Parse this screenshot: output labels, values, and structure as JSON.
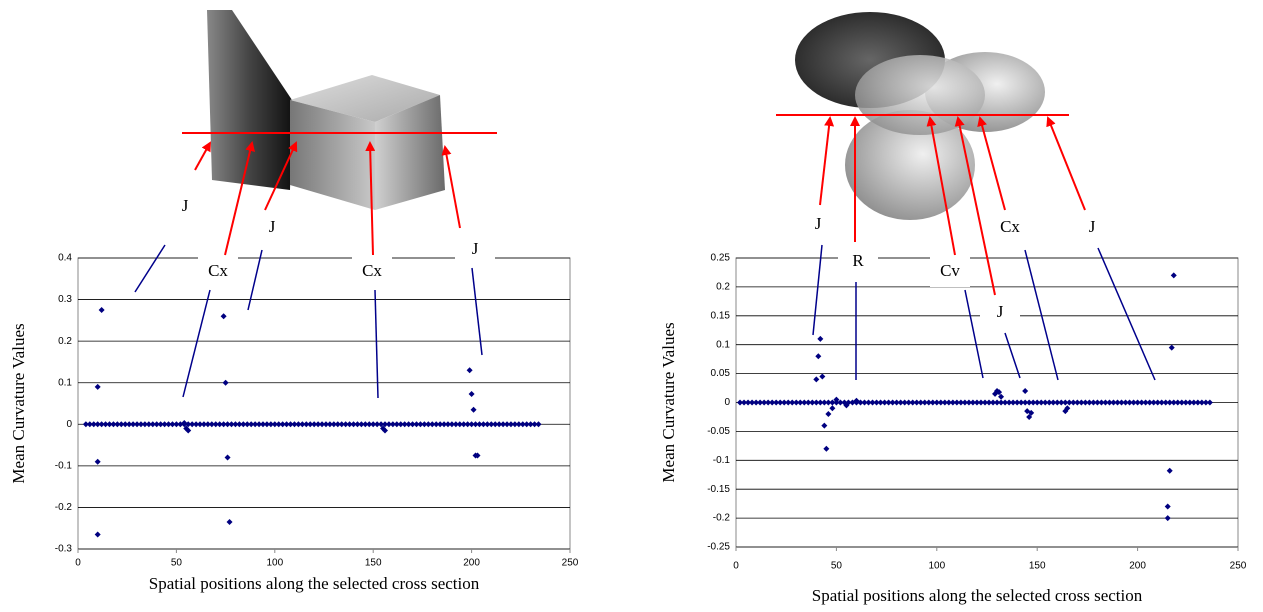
{
  "chart_data": [
    {
      "type": "scatter",
      "xlabel": "Spatial positions along the selected cross section",
      "ylabel": "Mean Curvature Values",
      "xlim": [
        0,
        250
      ],
      "xticks": [
        0,
        50,
        100,
        150,
        200,
        250
      ],
      "ylim": [
        -0.3,
        0.4
      ],
      "yticks": [
        -0.3,
        -0.2,
        -0.1,
        0,
        0.1,
        0.2,
        0.3,
        0.4
      ],
      "grid": true,
      "annotations": [
        "J",
        "Cx",
        "J",
        "Cx",
        "J"
      ],
      "series": [
        {
          "color": "#000080",
          "x": [
            4,
            6,
            8,
            10,
            12,
            14,
            16,
            18,
            20,
            22,
            24,
            26,
            28,
            30,
            32,
            34,
            36,
            38,
            40,
            42,
            44,
            46,
            48,
            50,
            52,
            54,
            56,
            58,
            60,
            62,
            64,
            66,
            68,
            70,
            72,
            74,
            76,
            78,
            80,
            82,
            84,
            86,
            88,
            90,
            92,
            94,
            96,
            98,
            100,
            102,
            104,
            106,
            108,
            110,
            112,
            114,
            116,
            118,
            120,
            122,
            124,
            126,
            128,
            130,
            132,
            134,
            136,
            138,
            140,
            142,
            144,
            146,
            148,
            150,
            152,
            154,
            156,
            158,
            160,
            162,
            164,
            166,
            168,
            170,
            172,
            174,
            176,
            178,
            180,
            182,
            184,
            186,
            188,
            190,
            192,
            194,
            196,
            198,
            200,
            202,
            204,
            206,
            208,
            210,
            212,
            214,
            216,
            218,
            220,
            222,
            224,
            226,
            228,
            230,
            232,
            234,
            10,
            10,
            10,
            12,
            74,
            75,
            76,
            77,
            54,
            55,
            56,
            155,
            156,
            199,
            200,
            201,
            202,
            203
          ],
          "y": [
            0,
            0,
            0,
            0,
            0,
            0,
            0,
            0,
            0,
            0,
            0,
            0,
            0,
            0,
            0,
            0,
            0,
            0,
            0,
            0,
            0,
            0,
            0,
            0,
            0,
            0,
            0,
            0,
            0,
            0,
            0,
            0,
            0,
            0,
            0,
            0,
            0,
            0,
            0,
            0,
            0,
            0,
            0,
            0,
            0,
            0,
            0,
            0,
            0,
            0,
            0,
            0,
            0,
            0,
            0,
            0,
            0,
            0,
            0,
            0,
            0,
            0,
            0,
            0,
            0,
            0,
            0,
            0,
            0,
            0,
            0,
            0,
            0,
            0,
            0,
            0,
            0,
            0,
            0,
            0,
            0,
            0,
            0,
            0,
            0,
            0,
            0,
            0,
            0,
            0,
            0,
            0,
            0,
            0,
            0,
            0,
            0,
            0,
            0,
            0,
            0,
            0,
            0,
            0,
            0,
            0,
            0,
            0,
            0,
            0,
            0,
            0,
            0,
            0,
            0,
            0,
            0.09,
            -0.09,
            -0.265,
            0.275,
            0.26,
            0.1,
            -0.08,
            -0.235,
            0.003,
            -0.01,
            -0.015,
            -0.01,
            -0.015,
            0.13,
            0.073,
            0.035,
            -0.075,
            -0.075
          ]
        }
      ]
    },
    {
      "type": "scatter",
      "xlabel": "Spatial positions along the selected cross section",
      "ylabel": "Mean Curvature Values",
      "xlim": [
        0,
        250
      ],
      "xticks": [
        0,
        50,
        100,
        150,
        200,
        250
      ],
      "ylim": [
        -0.25,
        0.25
      ],
      "yticks": [
        -0.25,
        -0.2,
        -0.15,
        -0.1,
        -0.05,
        0,
        0.05,
        0.1,
        0.15,
        0.2,
        0.25
      ],
      "grid": true,
      "annotations": [
        "J",
        "R",
        "Cv",
        "J",
        "Cx",
        "J"
      ],
      "series": [
        {
          "color": "#000080",
          "x": [
            2,
            4,
            6,
            8,
            10,
            12,
            14,
            16,
            18,
            20,
            22,
            24,
            26,
            28,
            30,
            32,
            34,
            36,
            38,
            40,
            42,
            44,
            46,
            48,
            50,
            52,
            54,
            56,
            58,
            60,
            62,
            64,
            66,
            68,
            70,
            72,
            74,
            76,
            78,
            80,
            82,
            84,
            86,
            88,
            90,
            92,
            94,
            96,
            98,
            100,
            102,
            104,
            106,
            108,
            110,
            112,
            114,
            116,
            118,
            120,
            122,
            124,
            126,
            128,
            130,
            132,
            134,
            136,
            138,
            140,
            142,
            144,
            146,
            148,
            150,
            152,
            154,
            156,
            158,
            160,
            162,
            164,
            166,
            168,
            170,
            172,
            174,
            176,
            178,
            180,
            182,
            184,
            186,
            188,
            190,
            192,
            194,
            196,
            198,
            200,
            202,
            204,
            206,
            208,
            210,
            212,
            214,
            216,
            218,
            220,
            222,
            224,
            226,
            228,
            230,
            232,
            234,
            236,
            40,
            41,
            42,
            43,
            44,
            45,
            46,
            48,
            50,
            55,
            60,
            129,
            130,
            131,
            132,
            144,
            145,
            146,
            147,
            164,
            165,
            215,
            215,
            216,
            217,
            218
          ],
          "y": [
            0,
            0,
            0,
            0,
            0,
            0,
            0,
            0,
            0,
            0,
            0,
            0,
            0,
            0,
            0,
            0,
            0,
            0,
            0,
            0,
            0,
            0,
            0,
            0,
            0,
            0,
            0,
            0,
            0,
            0,
            0,
            0,
            0,
            0,
            0,
            0,
            0,
            0,
            0,
            0,
            0,
            0,
            0,
            0,
            0,
            0,
            0,
            0,
            0,
            0,
            0,
            0,
            0,
            0,
            0,
            0,
            0,
            0,
            0,
            0,
            0,
            0,
            0,
            0,
            0,
            0,
            0,
            0,
            0,
            0,
            0,
            0,
            0,
            0,
            0,
            0,
            0,
            0,
            0,
            0,
            0,
            0,
            0,
            0,
            0,
            0,
            0,
            0,
            0,
            0,
            0,
            0,
            0,
            0,
            0,
            0,
            0,
            0,
            0,
            0,
            0,
            0,
            0,
            0,
            0,
            0,
            0,
            0,
            0,
            0,
            0,
            0,
            0,
            0,
            0,
            0,
            0,
            0,
            0.04,
            0.08,
            0.11,
            0.045,
            -0.04,
            -0.08,
            -0.02,
            -0.01,
            0.005,
            -0.005,
            0.003,
            0.015,
            0.02,
            0.018,
            0.01,
            0.02,
            -0.015,
            -0.025,
            -0.018,
            -0.015,
            -0.01,
            -0.2,
            -0.18,
            -0.118,
            0.095,
            0.22
          ]
        }
      ]
    }
  ]
}
